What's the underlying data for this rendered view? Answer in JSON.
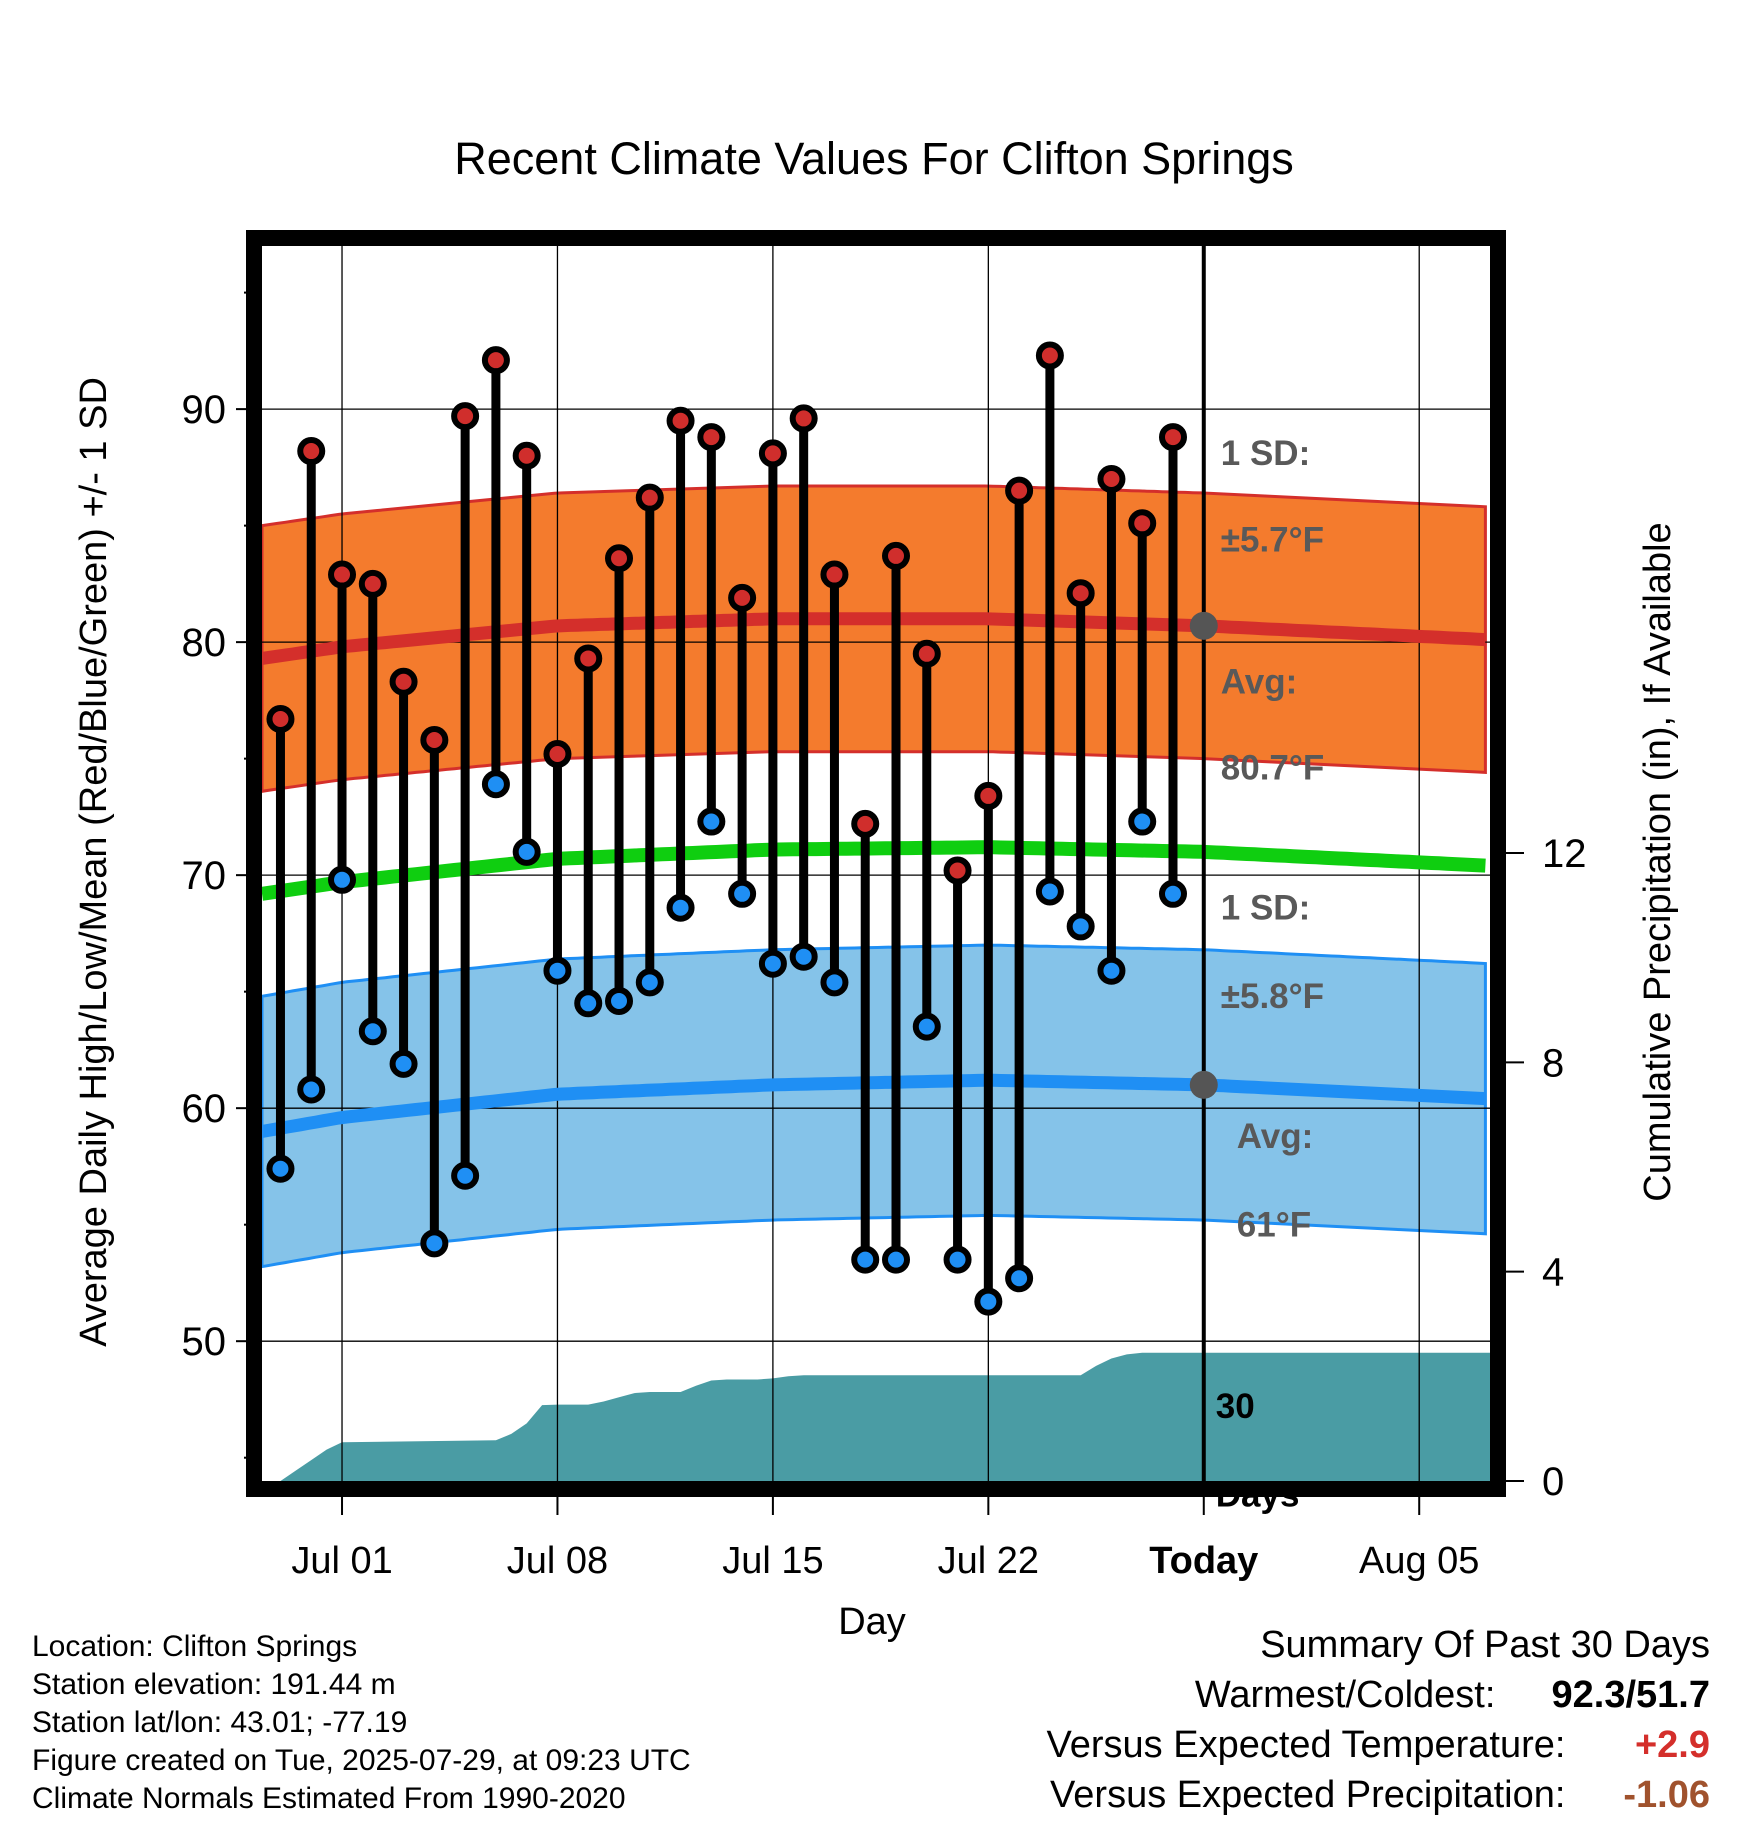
{
  "chart_data": {
    "type": "line",
    "title": "Recent Climate Values For Clifton Springs",
    "xlabel": "Day",
    "ylabel": "Average Daily High/Low/Mean (Red/Blue/Green) +/- 1 SD",
    "y2label": "Cumulative Precipitation (in), If Available",
    "x_ticks": [
      "Jul 01",
      "Jul 08",
      "Jul 15",
      "Jul 22",
      "Today",
      "Aug 05"
    ],
    "x_tick_days": [
      0,
      7,
      14,
      21,
      28,
      35
    ],
    "x_range_days": [
      -2.6,
      37.3
    ],
    "ylim": [
      44,
      97
    ],
    "yticks": [
      50,
      60,
      70,
      80,
      90
    ],
    "y2lim": [
      0,
      23.6
    ],
    "y2ticks": [
      0,
      4,
      8,
      12
    ],
    "today_day": 28,
    "days": [
      -2,
      -1,
      0,
      1,
      2,
      3,
      4,
      5,
      6,
      7,
      8,
      9,
      10,
      11,
      12,
      13,
      14,
      15,
      16,
      17,
      18,
      19,
      20,
      21,
      22,
      23,
      24,
      25,
      26,
      27
    ],
    "daily_high": [
      76.7,
      88.2,
      82.9,
      82.5,
      78.3,
      75.8,
      89.7,
      92.1,
      88.0,
      75.2,
      79.3,
      83.6,
      86.2,
      89.5,
      88.8,
      81.9,
      88.1,
      89.6,
      82.9,
      72.2,
      83.7,
      79.5,
      70.2,
      73.4,
      86.5,
      92.3,
      82.1,
      87.0,
      85.1,
      88.8
    ],
    "daily_low": [
      57.4,
      60.8,
      69.8,
      63.3,
      61.9,
      54.2,
      57.1,
      73.9,
      71.0,
      65.9,
      64.5,
      64.6,
      65.4,
      68.6,
      72.3,
      69.2,
      66.2,
      66.5,
      65.4,
      53.5,
      53.5,
      63.5,
      53.5,
      51.7,
      52.7,
      69.3,
      67.8,
      65.9,
      72.3,
      69.2
    ],
    "normal_days": [
      -2.6,
      0,
      7,
      14,
      21,
      28,
      37.3
    ],
    "normal_high": [
      79.3,
      79.8,
      80.7,
      81.0,
      81.0,
      80.7,
      80.1
    ],
    "normal_low": [
      59.0,
      59.6,
      60.6,
      61.0,
      61.2,
      61.0,
      60.4
    ],
    "normal_mean": [
      69.2,
      69.7,
      70.7,
      71.1,
      71.2,
      71.0,
      70.4
    ],
    "high_sd": 5.7,
    "low_sd": 5.8,
    "precip_days": [
      -2,
      -1.5,
      -1,
      -0.5,
      0,
      5,
      5.5,
      6,
      6.5,
      7,
      8,
      8.5,
      9,
      9.5,
      10,
      10.5,
      11,
      11.5,
      12,
      12.5,
      13,
      13.5,
      14,
      14.5,
      15,
      15.5,
      24,
      24.5,
      25,
      25.5,
      26,
      28,
      37.3
    ],
    "precip_cum": [
      0.0,
      0.2,
      0.4,
      0.6,
      0.74,
      0.78,
      0.9,
      1.1,
      1.45,
      1.46,
      1.46,
      1.52,
      1.6,
      1.68,
      1.7,
      1.7,
      1.7,
      1.82,
      1.92,
      1.94,
      1.94,
      1.94,
      1.96,
      2.0,
      2.02,
      2.02,
      2.02,
      2.2,
      2.34,
      2.42,
      2.45,
      2.45,
      2.45
    ],
    "annotations": {
      "high_sd_label": [
        "1 SD:",
        "±5.7°F"
      ],
      "high_avg_label": [
        "Avg:",
        "80.7°F"
      ],
      "low_sd_label": [
        "1 SD:",
        "±5.8°F"
      ],
      "low_avg_label": [
        "Avg:",
        "61°F"
      ],
      "period_label": [
        "30",
        "Days"
      ]
    },
    "colors": {
      "high_band": "#f47b2d",
      "high_line": "#d42f2b",
      "low_band": "#85c3e9",
      "low_line": "#1f8ff4",
      "mean_line": "#0fce10",
      "precip_fill": "#4a9ca4",
      "high_marker": "#d02e2c",
      "low_marker": "#1f8ff4",
      "annotation_text": "#595959"
    }
  },
  "info": {
    "location": "Location: Clifton Springs",
    "elevation": "Station elevation: 191.44 m",
    "latlon": "Station lat/lon: 43.01; -77.19",
    "created": "Figure created on Tue, 2025-07-29, at 09:23 UTC",
    "normals": "Climate Normals Estimated From 1990-2020"
  },
  "summary": {
    "title": "Summary Of Past 30 Days",
    "warm_cold_label": "Warmest/Coldest:",
    "warm_cold_value": "92.3/51.7",
    "temp_label": "Versus Expected Temperature:",
    "temp_value": "+2.9",
    "temp_color": "#d42f2b",
    "precip_label": "Versus Expected Precipitation:",
    "precip_value": "-1.06",
    "precip_color": "#a0522d"
  }
}
